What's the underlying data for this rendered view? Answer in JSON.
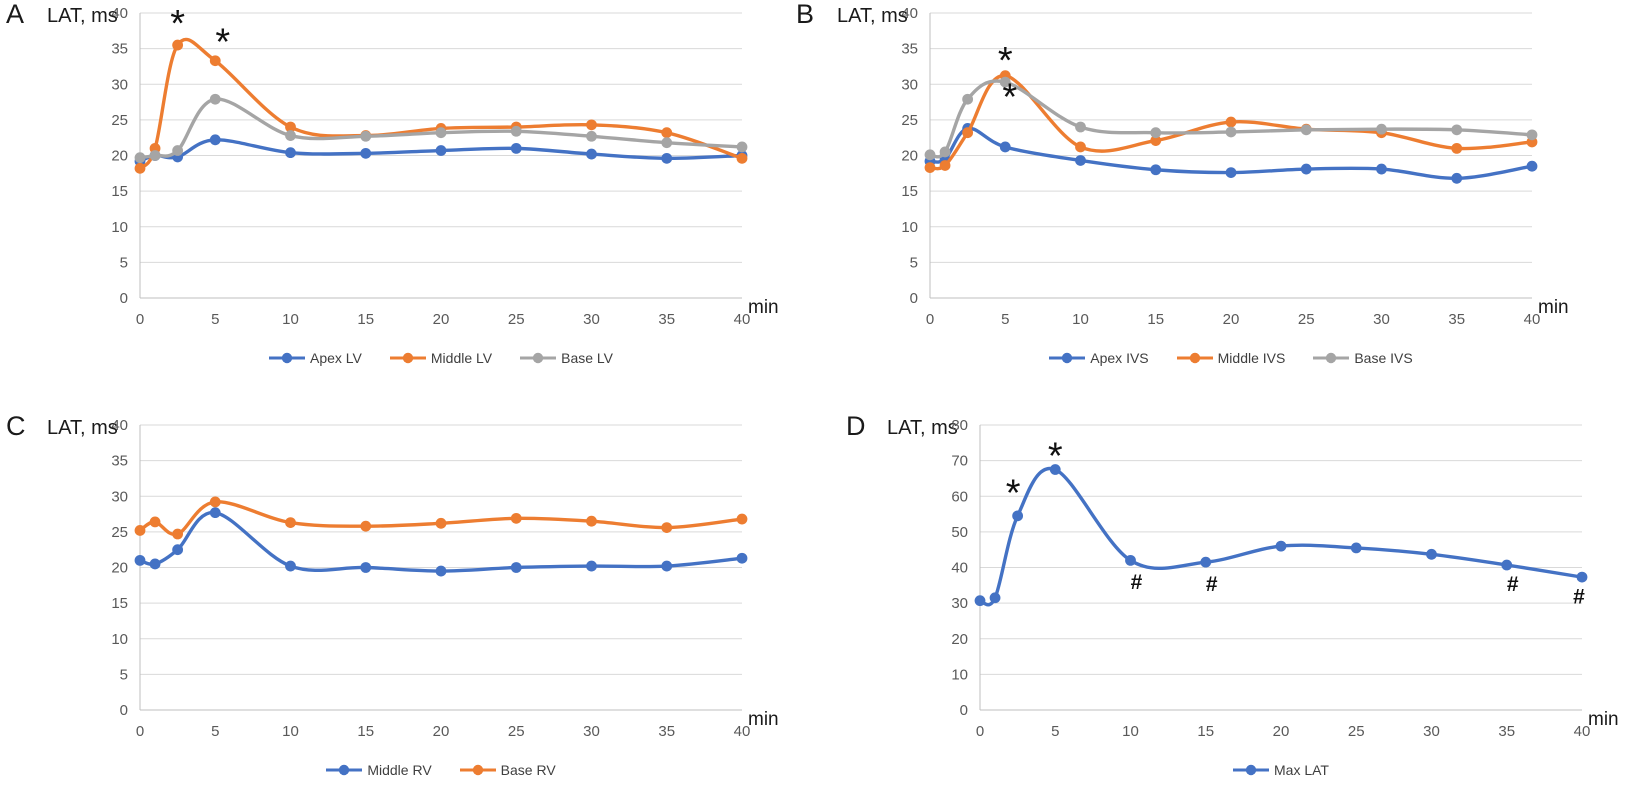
{
  "figure": {
    "background": "#FFFFFF",
    "palette": {
      "blue": "#4472C4",
      "orange": "#ED7D31",
      "gray": "#A5A5A5"
    }
  },
  "chart_data": [
    {
      "panel": "A",
      "type": "line",
      "title": "LAT, ms",
      "xlabel": "min",
      "grid": true,
      "legend_position": "bottom",
      "x": [
        0,
        1,
        2.5,
        5,
        10,
        15,
        20,
        25,
        30,
        35,
        40
      ],
      "xticks": [
        0,
        5,
        10,
        15,
        20,
        25,
        30,
        35,
        40
      ],
      "ylim": [
        0,
        40
      ],
      "ytick_step": 5,
      "series": [
        {
          "name": "Apex LV",
          "color": "#4472C4",
          "values": [
            19.2,
            20.0,
            19.8,
            22.2,
            20.4,
            20.3,
            20.7,
            21.0,
            20.2,
            19.6,
            20.0
          ]
        },
        {
          "name": "Middle LV",
          "color": "#ED7D31",
          "values": [
            18.2,
            21.0,
            35.5,
            33.3,
            24.0,
            22.8,
            23.8,
            24.0,
            24.3,
            23.2,
            19.6
          ]
        },
        {
          "name": "Base LV",
          "color": "#A5A5A5",
          "values": [
            19.7,
            20.0,
            20.7,
            27.9,
            22.8,
            22.7,
            23.2,
            23.4,
            22.7,
            21.8,
            21.2
          ]
        }
      ],
      "annotations": [
        {
          "sym": "*",
          "x": 2.5,
          "y": 38.6
        },
        {
          "sym": "*",
          "x": 5.5,
          "y": 36.0
        }
      ]
    },
    {
      "panel": "B",
      "type": "line",
      "title": "LAT, ms",
      "xlabel": "min",
      "grid": true,
      "legend_position": "bottom",
      "x": [
        0,
        1,
        2.5,
        5,
        10,
        15,
        20,
        25,
        30,
        35,
        40
      ],
      "xticks": [
        0,
        5,
        10,
        15,
        20,
        25,
        30,
        35,
        40
      ],
      "ylim": [
        0,
        40
      ],
      "ytick_step": 5,
      "series": [
        {
          "name": "Apex IVS",
          "color": "#4472C4",
          "values": [
            19.2,
            19.5,
            23.8,
            21.2,
            19.3,
            18.0,
            17.6,
            18.1,
            18.1,
            16.8,
            18.5
          ]
        },
        {
          "name": "Middle IVS",
          "color": "#ED7D31",
          "values": [
            18.3,
            18.6,
            23.2,
            31.2,
            21.2,
            22.1,
            24.7,
            23.7,
            23.2,
            21.0,
            21.9
          ]
        },
        {
          "name": "Base IVS",
          "color": "#A5A5A5",
          "values": [
            20.1,
            20.5,
            27.9,
            30.3,
            24.0,
            23.2,
            23.3,
            23.6,
            23.7,
            23.6,
            22.9
          ]
        }
      ],
      "annotations": [
        {
          "sym": "*",
          "x": 5.0,
          "y": 33.4
        },
        {
          "sym": "*",
          "x": 5.3,
          "y": 28.3
        }
      ]
    },
    {
      "panel": "C",
      "type": "line",
      "title": "LAT, ms",
      "xlabel": "min",
      "grid": true,
      "legend_position": "bottom",
      "x": [
        0,
        1,
        2.5,
        5,
        10,
        15,
        20,
        25,
        30,
        35,
        40
      ],
      "xticks": [
        0,
        5,
        10,
        15,
        20,
        25,
        30,
        35,
        40
      ],
      "ylim": [
        0,
        40
      ],
      "ytick_step": 5,
      "series": [
        {
          "name": "Middle RV",
          "color": "#4472C4",
          "values": [
            21.0,
            20.5,
            22.5,
            27.7,
            20.2,
            20.0,
            19.5,
            20.0,
            20.2,
            20.2,
            21.3
          ]
        },
        {
          "name": "Base RV",
          "color": "#ED7D31",
          "values": [
            25.2,
            26.4,
            24.7,
            29.2,
            26.3,
            25.8,
            26.2,
            26.9,
            26.5,
            25.6,
            26.8
          ]
        }
      ],
      "annotations": []
    },
    {
      "panel": "D",
      "type": "line",
      "title": "LAT, ms",
      "xlabel": "min",
      "grid": true,
      "legend_position": "bottom",
      "x": [
        0,
        1,
        2.5,
        5,
        10,
        15,
        20,
        25,
        30,
        35,
        40
      ],
      "xticks": [
        0,
        5,
        10,
        15,
        20,
        25,
        30,
        35,
        40
      ],
      "ylim": [
        0,
        80
      ],
      "ytick_step": 10,
      "series": [
        {
          "name": "Max LAT",
          "color": "#4472C4",
          "values": [
            30.7,
            31.5,
            54.5,
            67.5,
            42.0,
            41.5,
            46.0,
            45.5,
            43.7,
            40.7,
            37.3
          ]
        }
      ],
      "annotations": [
        {
          "sym": "*",
          "x": 2.2,
          "y": 61.0
        },
        {
          "sym": "*",
          "x": 5.0,
          "y": 71.5
        },
        {
          "sym": "#",
          "x": 10.4,
          "y": 36.2
        },
        {
          "sym": "#",
          "x": 15.4,
          "y": 35.7
        },
        {
          "sym": "#",
          "x": 35.4,
          "y": 35.7
        },
        {
          "sym": "#",
          "x": 39.8,
          "y": 32.2
        }
      ]
    }
  ]
}
